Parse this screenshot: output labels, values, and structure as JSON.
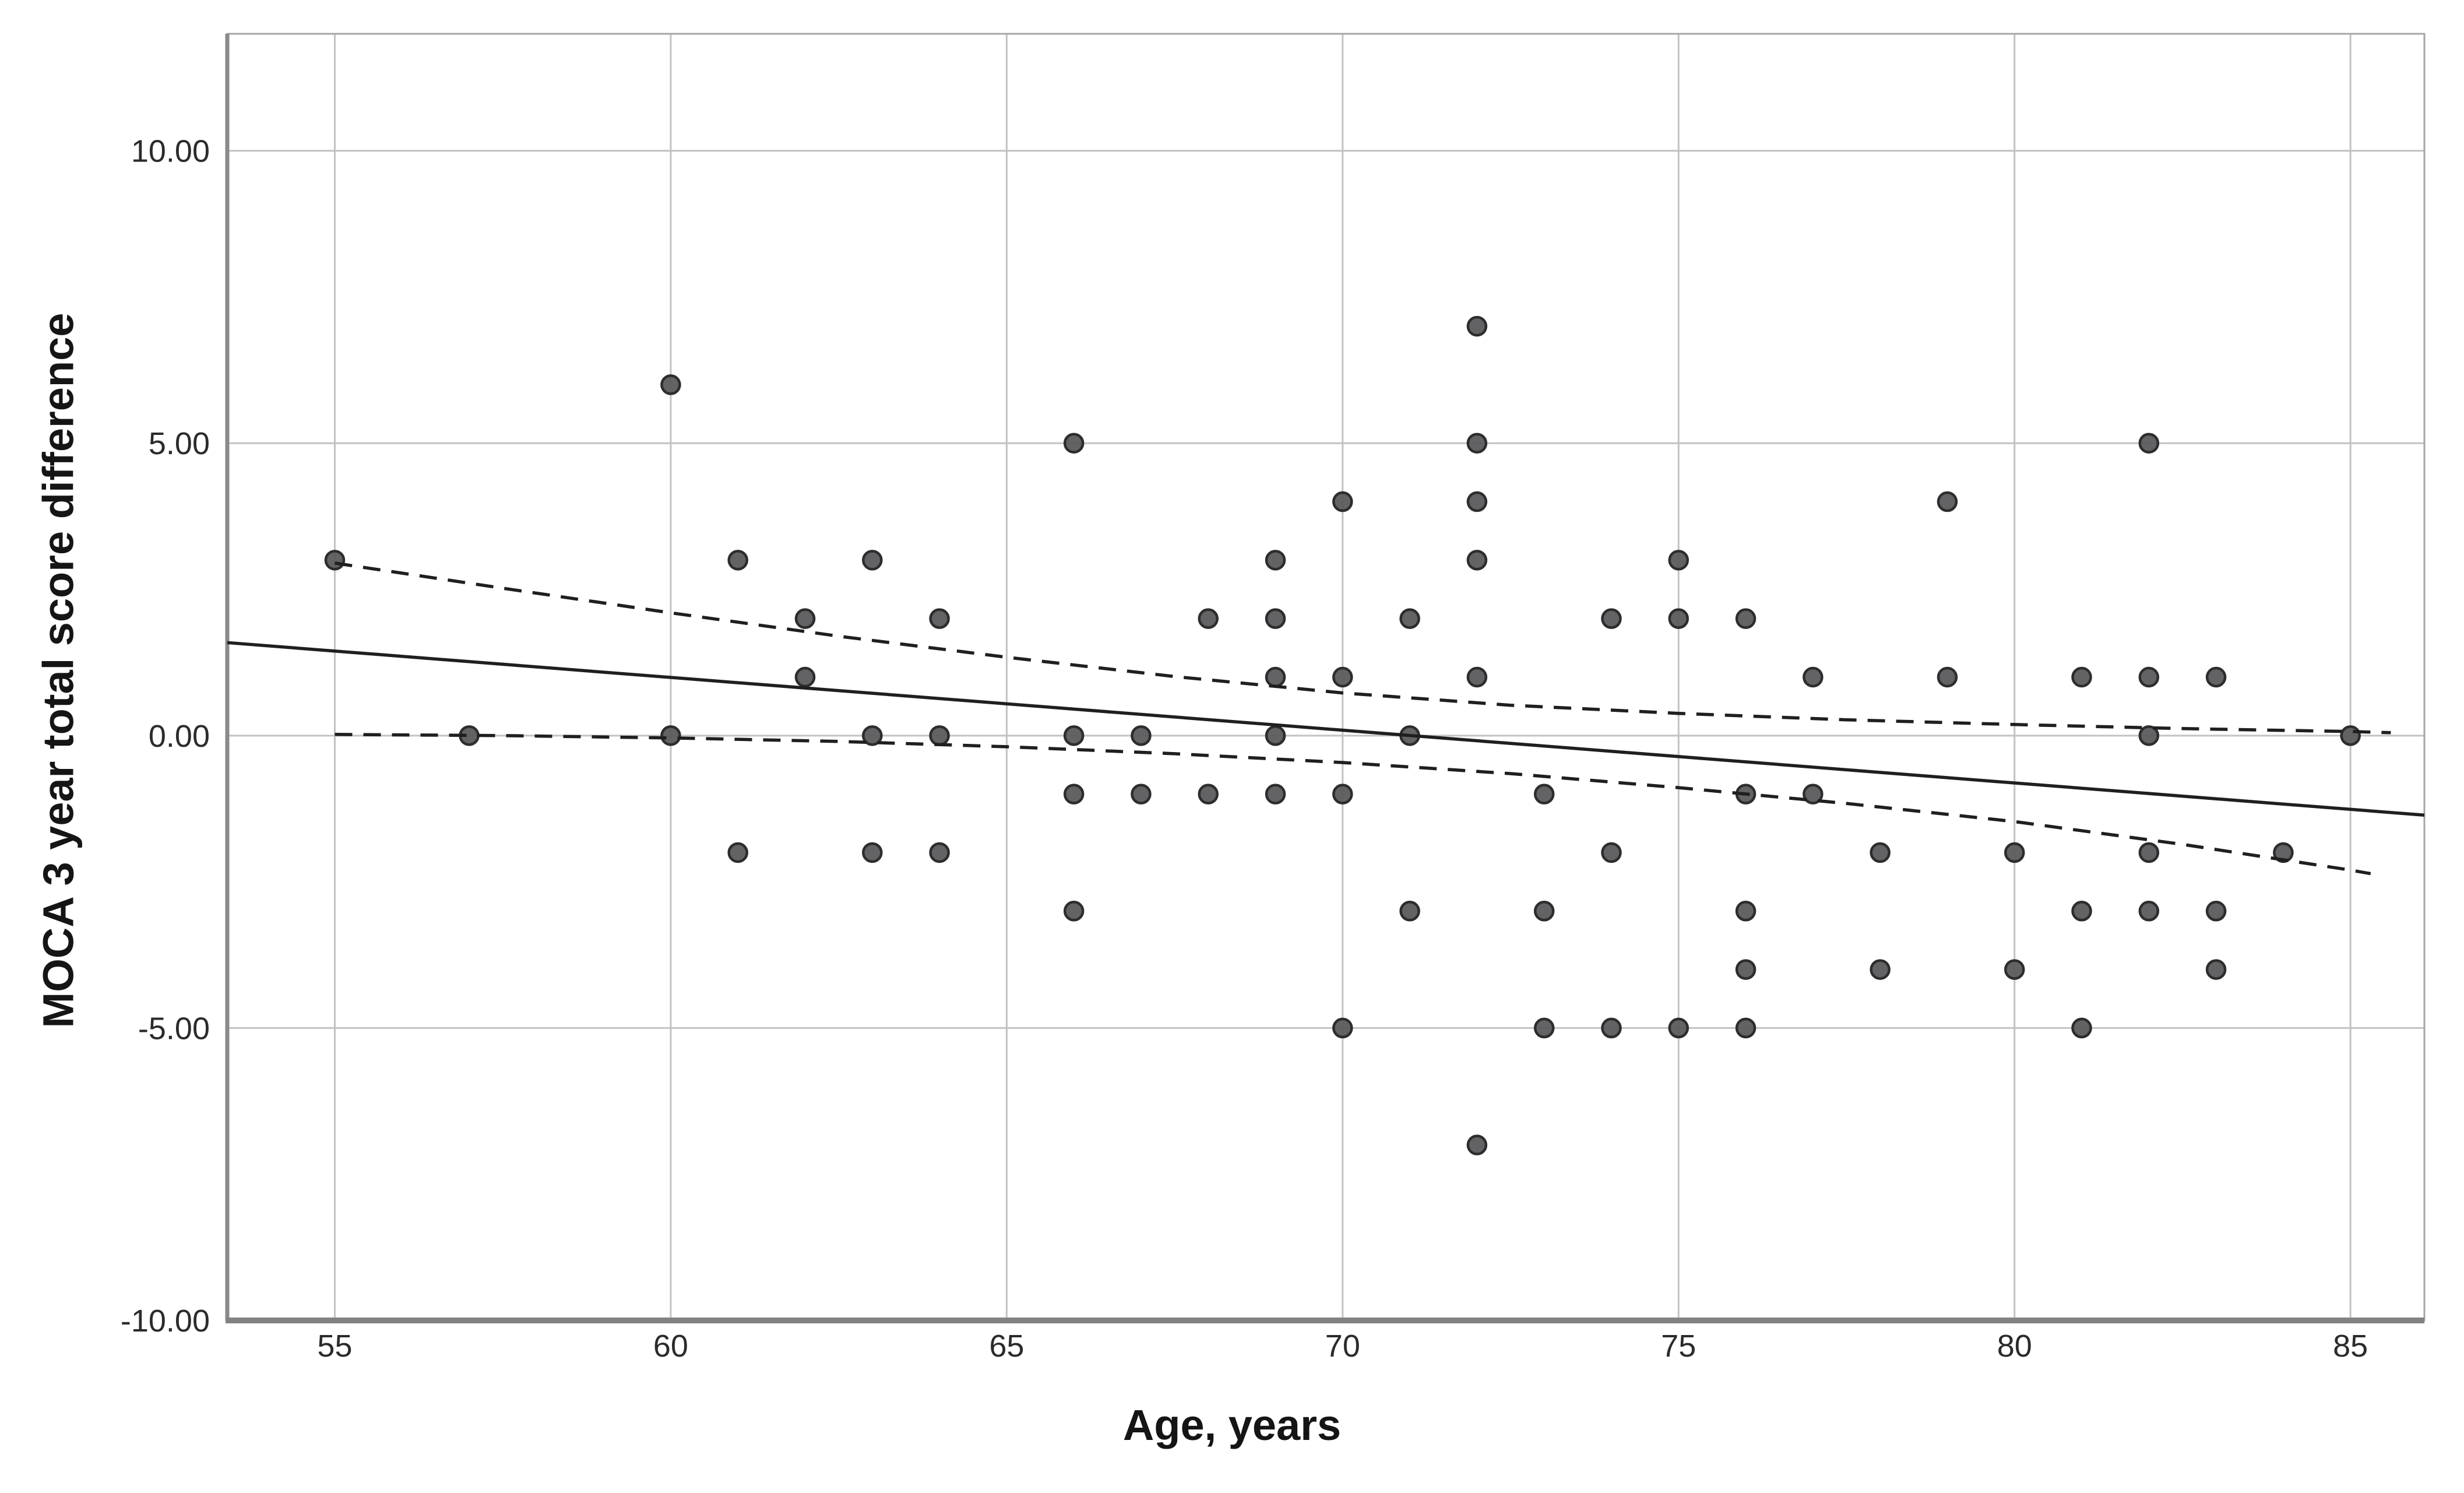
{
  "chart_data": {
    "type": "scatter",
    "title": "",
    "xlabel": "Age, years",
    "ylabel": "MOCA 3 year total score difference",
    "xlim": [
      53.4,
      86.1
    ],
    "ylim": [
      -10,
      12
    ],
    "x_ticks": [
      55,
      60,
      65,
      70,
      75,
      80,
      85
    ],
    "y_ticks": [
      {
        "value": 10,
        "label": "10.00"
      },
      {
        "value": 5,
        "label": "5.00"
      },
      {
        "value": 0,
        "label": "0.00"
      },
      {
        "value": -5,
        "label": "-5.00"
      },
      {
        "value": -10,
        "label": "-10.00"
      }
    ],
    "grid": true,
    "legend": "none",
    "marker": "circle",
    "points": [
      [
        55,
        3
      ],
      [
        57,
        0
      ],
      [
        60,
        6
      ],
      [
        60,
        0
      ],
      [
        61,
        3
      ],
      [
        61,
        -2
      ],
      [
        62,
        2
      ],
      [
        62,
        1
      ],
      [
        63,
        3
      ],
      [
        63,
        0
      ],
      [
        63,
        -2
      ],
      [
        64,
        2
      ],
      [
        64,
        0
      ],
      [
        64,
        -2
      ],
      [
        66,
        5
      ],
      [
        66,
        0
      ],
      [
        66,
        -1
      ],
      [
        66,
        -3
      ],
      [
        67,
        0
      ],
      [
        67,
        -1
      ],
      [
        68,
        2
      ],
      [
        68,
        -1
      ],
      [
        69,
        3
      ],
      [
        69,
        2
      ],
      [
        69,
        1
      ],
      [
        69,
        0
      ],
      [
        69,
        -1
      ],
      [
        70,
        4
      ],
      [
        70,
        1
      ],
      [
        70,
        -1
      ],
      [
        70,
        -5
      ],
      [
        71,
        2
      ],
      [
        71,
        0
      ],
      [
        71,
        -3
      ],
      [
        72,
        7
      ],
      [
        72,
        5
      ],
      [
        72,
        4
      ],
      [
        72,
        3
      ],
      [
        72,
        1
      ],
      [
        72,
        -7
      ],
      [
        73,
        -1
      ],
      [
        73,
        -3
      ],
      [
        73,
        -5
      ],
      [
        74,
        2
      ],
      [
        74,
        -2
      ],
      [
        74,
        -5
      ],
      [
        75,
        3
      ],
      [
        75,
        2
      ],
      [
        75,
        -5
      ],
      [
        76,
        2
      ],
      [
        76,
        -1
      ],
      [
        76,
        -3
      ],
      [
        76,
        -4
      ],
      [
        76,
        -5
      ],
      [
        77,
        1
      ],
      [
        77,
        -1
      ],
      [
        78,
        -2
      ],
      [
        78,
        -4
      ],
      [
        79,
        4
      ],
      [
        79,
        1
      ],
      [
        80,
        -2
      ],
      [
        80,
        -4
      ],
      [
        81,
        1
      ],
      [
        81,
        -3
      ],
      [
        81,
        -5
      ],
      [
        82,
        5
      ],
      [
        82,
        1
      ],
      [
        82,
        0
      ],
      [
        82,
        -2
      ],
      [
        82,
        -3
      ],
      [
        83,
        1
      ],
      [
        83,
        -3
      ],
      [
        83,
        -4
      ],
      [
        84,
        -2
      ],
      [
        85,
        0
      ]
    ],
    "regression_line": {
      "x1": 53.4,
      "y1": 1.59,
      "x2": 86.1,
      "y2": -1.36,
      "style": "solid"
    },
    "ci_upper": [
      [
        55,
        2.95
      ],
      [
        57.5,
        2.52
      ],
      [
        60,
        2.1
      ],
      [
        62.5,
        1.7
      ],
      [
        65,
        1.34
      ],
      [
        67.5,
        1.01
      ],
      [
        70,
        0.73
      ],
      [
        72.5,
        0.52
      ],
      [
        75,
        0.38
      ],
      [
        77.5,
        0.27
      ],
      [
        80,
        0.19
      ],
      [
        82.5,
        0.12
      ],
      [
        85,
        0.07
      ],
      [
        85.6,
        0.05
      ]
    ],
    "ci_lower": [
      [
        55,
        0.02
      ],
      [
        57.5,
        0.0
      ],
      [
        60,
        -0.04
      ],
      [
        62.5,
        -0.1
      ],
      [
        65,
        -0.19
      ],
      [
        67.5,
        -0.31
      ],
      [
        70,
        -0.46
      ],
      [
        72.5,
        -0.65
      ],
      [
        75,
        -0.89
      ],
      [
        77.5,
        -1.16
      ],
      [
        80,
        -1.47
      ],
      [
        82.5,
        -1.86
      ],
      [
        85,
        -2.3
      ],
      [
        85.3,
        -2.36
      ]
    ],
    "colors": {
      "background": "#ffffff",
      "gridline": "#c2c2c2",
      "frame": "#a6a6a6",
      "axis_bottom": "#828282",
      "axis_left": "#8a8a8a",
      "point_fill": "#5b5b5d",
      "point_stroke": "#2d2d2d",
      "line": "#1f1f1f",
      "tick_label": "#2b2b2b"
    }
  }
}
